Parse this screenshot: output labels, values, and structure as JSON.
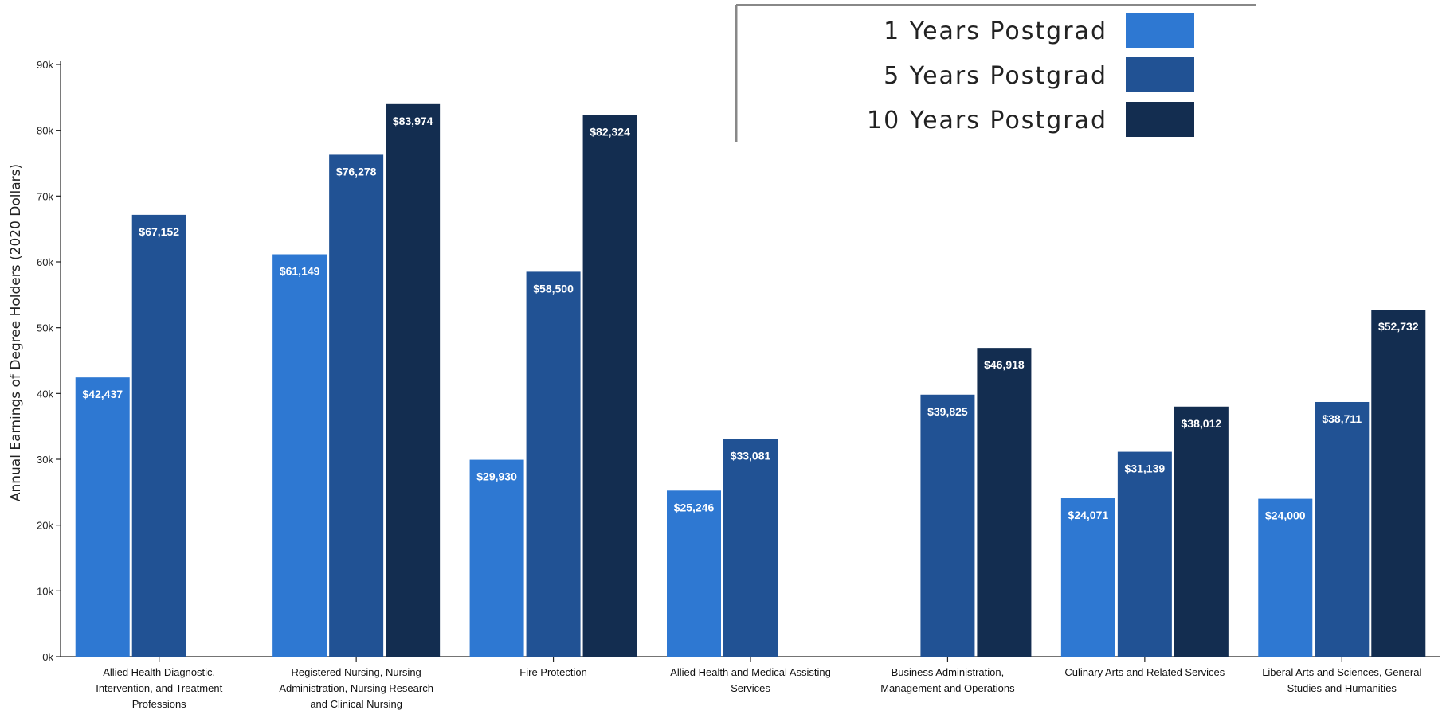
{
  "chart_data": {
    "type": "bar",
    "ylabel": "Annual Earnings of Degree Holders (2020 Dollars)",
    "ylim": [
      0,
      90000
    ],
    "yticks": [
      {
        "value": 0,
        "label": "0k"
      },
      {
        "value": 10000,
        "label": "10k"
      },
      {
        "value": 20000,
        "label": "20k"
      },
      {
        "value": 30000,
        "label": "30k"
      },
      {
        "value": 40000,
        "label": "40k"
      },
      {
        "value": 50000,
        "label": "50k"
      },
      {
        "value": 60000,
        "label": "60k"
      },
      {
        "value": 70000,
        "label": "70k"
      },
      {
        "value": 80000,
        "label": "80k"
      },
      {
        "value": 90000,
        "label": "90k"
      }
    ],
    "categories": [
      [
        "Allied Health Diagnostic,",
        "Intervention, and Treatment",
        "Professions"
      ],
      [
        "Registered Nursing, Nursing",
        "Administration, Nursing Research",
        "and Clinical Nursing"
      ],
      [
        "Fire Protection"
      ],
      [
        "Allied Health and Medical Assisting",
        "Services"
      ],
      [
        "Business Administration,",
        "Management and Operations"
      ],
      [
        "Culinary Arts and Related Services"
      ],
      [
        "Liberal Arts and Sciences, General",
        "Studies and Humanities"
      ]
    ],
    "series": [
      {
        "name": "1 Years Postgrad",
        "color": "#2e78d2",
        "values": [
          42437,
          61149,
          29930,
          25246,
          null,
          24071,
          24000
        ],
        "labels": [
          "$42,437",
          "$61,149",
          "$29,930",
          "$25,246",
          "",
          "$24,071",
          "$24,000"
        ]
      },
      {
        "name": "5 Years Postgrad",
        "color": "#215294",
        "values": [
          67152,
          76278,
          58500,
          33081,
          39825,
          31139,
          38711
        ],
        "labels": [
          "$67,152",
          "$76,278",
          "$58,500",
          "$33,081",
          "$39,825",
          "$31,139",
          "$38,711"
        ]
      },
      {
        "name": "10 Years Postgrad",
        "color": "#132d50",
        "values": [
          null,
          83974,
          82324,
          null,
          46918,
          38012,
          52732
        ],
        "labels": [
          "",
          "$83,974",
          "$82,324",
          "",
          "$46,918",
          "$38,012",
          "$52,732"
        ]
      }
    ],
    "legend_position": "top-right",
    "grid": false
  }
}
